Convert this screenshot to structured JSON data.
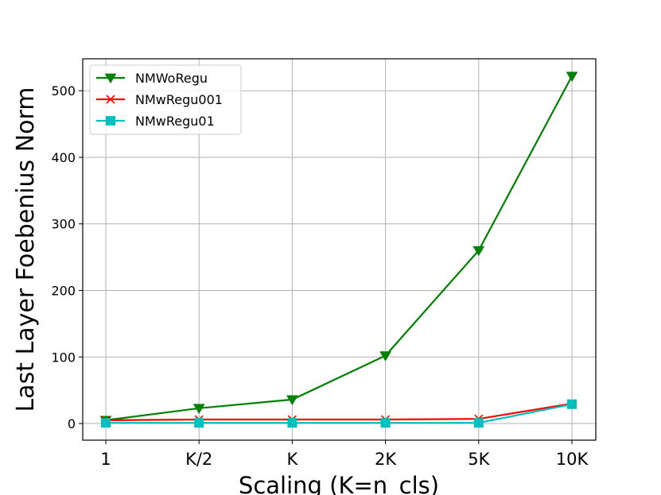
{
  "chart_data": {
    "type": "line",
    "title": "",
    "xlabel": "Scaling (K=n_cls)",
    "ylabel": "Last Layer Foebenius Norm",
    "categories": [
      "1",
      "K/2",
      "K",
      "2K",
      "5K",
      "10K"
    ],
    "ylim": [
      -25,
      548
    ],
    "yticks": [
      0,
      100,
      200,
      300,
      400,
      500
    ],
    "grid": true,
    "legend_position": "upper-left",
    "series": [
      {
        "name": "NMWoRegu",
        "color": "#008000",
        "marker": "triangle-down",
        "values": [
          5,
          23,
          36,
          102,
          260,
          522
        ]
      },
      {
        "name": "NMwRegu001",
        "color": "#ff0000",
        "marker": "x",
        "values": [
          5,
          6,
          6,
          6,
          7,
          30
        ]
      },
      {
        "name": "NMwRegu01",
        "color": "#00bfbf",
        "marker": "square",
        "values": [
          1,
          1,
          1,
          1,
          1,
          29
        ]
      }
    ]
  }
}
